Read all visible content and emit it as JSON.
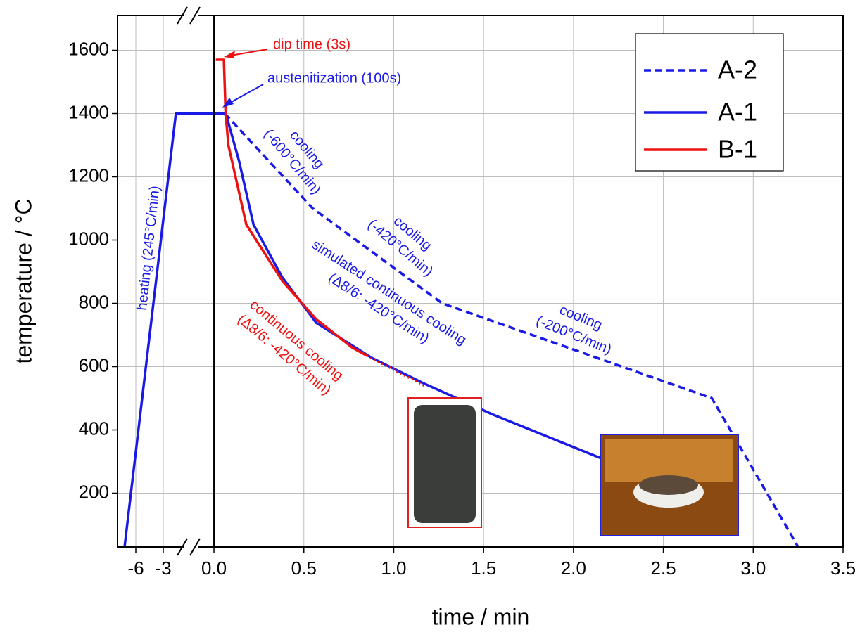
{
  "chart_data": {
    "type": "line",
    "xlabel": "time / min",
    "ylabel": "temperature / °C",
    "xlim": [
      -8,
      3.5
    ],
    "x_segments": [
      [
        -8,
        -0.25
      ],
      [
        -0.1,
        3.5
      ]
    ],
    "ylim": [
      30,
      1710
    ],
    "xticks": [
      -6,
      -3,
      {
        "value": 0,
        "label": "0.0"
      },
      0.5,
      {
        "value": 1,
        "label": "1.0"
      },
      1.5,
      {
        "value": 2,
        "label": "2.0"
      },
      2.5,
      {
        "value": 3,
        "label": "3.0"
      },
      3.5
    ],
    "yticks": [
      200,
      400,
      600,
      800,
      1000,
      1200,
      1400,
      1600
    ],
    "grid": true,
    "legend": "upper right",
    "series": [
      {
        "name": "A-2",
        "color": "#1a1ae6",
        "dash": true,
        "x": [
          0.06,
          0.55,
          1.27,
          2.77,
          3.25
        ],
        "values": [
          1400,
          1100,
          800,
          500,
          30
        ]
      },
      {
        "name": "A-1",
        "color": "#1a1ae6",
        "x": [
          -7.23,
          -1.62,
          0.06,
          0.08,
          0.14,
          0.22,
          0.38,
          0.57,
          0.88,
          1.16,
          1.55,
          2.15,
          2.25
        ],
        "values": [
          30,
          1400,
          1400,
          1371,
          1249,
          1049,
          882,
          738,
          627,
          549,
          449,
          311,
          290
        ]
      },
      {
        "name": "B-1",
        "color": "#ee1111",
        "x": [
          0.01,
          0.055,
          0.065,
          0.08,
          0.12,
          0.18,
          0.38,
          0.57,
          0.77,
          0.85
        ],
        "values": [
          1570,
          1570,
          1400,
          1300,
          1200,
          1049,
          871,
          749,
          660,
          635
        ],
        "extrapolation": {
          "x": [
            0.85,
            1.17
          ],
          "values": [
            635,
            540
          ]
        }
      }
    ],
    "annotations": [
      {
        "lines": [
          "dip time (3s)"
        ],
        "color": "#ee1111"
      },
      {
        "lines": [
          "austenitization (100s)"
        ],
        "color": "#1a1ae6"
      },
      {
        "lines": [
          "heating (245°C/min)"
        ],
        "color": "#1a1ae6"
      },
      {
        "lines": [
          "cooling",
          "(-600°C/min)"
        ],
        "color": "#1a1ae6"
      },
      {
        "lines": [
          "cooling",
          "(-420°C/min)"
        ],
        "color": "#1a1ae6"
      },
      {
        "lines": [
          "simulated continuous cooling",
          "(Δ8/6: -420°C/min)"
        ],
        "color": "#1a1ae6"
      },
      {
        "lines": [
          "continuous cooling",
          "(Δ8/6: -420°C/min)"
        ],
        "color": "#ee1111"
      },
      {
        "lines": [
          "cooling",
          "(-200°C/min)"
        ],
        "color": "#1a1ae6"
      }
    ]
  }
}
